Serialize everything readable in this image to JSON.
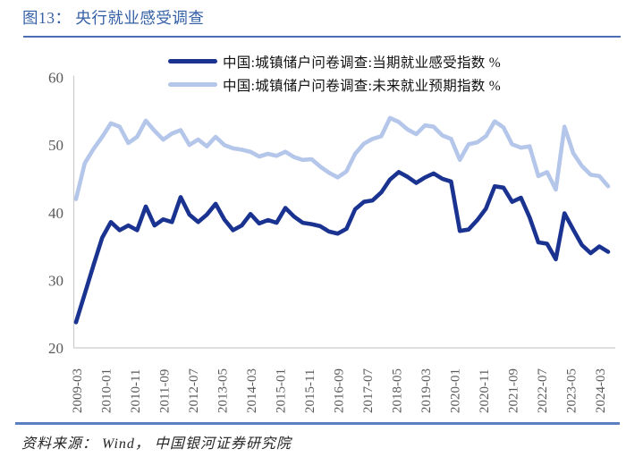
{
  "header": {
    "title": "图13： 央行就业感受调查"
  },
  "legend": {
    "items": [
      {
        "label": "中国:城镇储户问卷调查:当期就业感受指数 %",
        "color": "#1a3390"
      },
      {
        "label": "中国:城镇储户问卷调查:未来就业预期指数 %",
        "color": "#b4c6e9"
      }
    ]
  },
  "footer": {
    "source": "资料来源： Wind， 中国银河证券研究院"
  },
  "chart_data": {
    "type": "line",
    "title": "央行就业感受调查",
    "xlabel": "",
    "ylabel": "",
    "ylim": [
      20,
      60
    ],
    "y_ticks": [
      60,
      50,
      40,
      30,
      20
    ],
    "grid": false,
    "legend_position": "top-center",
    "x_tick_labels": [
      "2009-03",
      "2010-01",
      "2010-11",
      "2011-09",
      "2012-07",
      "2013-05",
      "2014-03",
      "2015-01",
      "2015-11",
      "2016-09",
      "2017-07",
      "2018-05",
      "2019-03",
      "2020-01",
      "2020-11",
      "2021-09",
      "2022-07",
      "2023-05",
      "2024-03"
    ],
    "x": [
      "2009-03",
      "2009-06",
      "2009-09",
      "2009-12",
      "2010-03",
      "2010-06",
      "2010-09",
      "2010-12",
      "2011-03",
      "2011-06",
      "2011-09",
      "2011-12",
      "2012-03",
      "2012-06",
      "2012-09",
      "2012-12",
      "2013-03",
      "2013-06",
      "2013-09",
      "2013-12",
      "2014-03",
      "2014-06",
      "2014-09",
      "2014-12",
      "2015-03",
      "2015-06",
      "2015-09",
      "2015-12",
      "2016-03",
      "2016-06",
      "2016-09",
      "2016-12",
      "2017-03",
      "2017-06",
      "2017-09",
      "2017-12",
      "2018-03",
      "2018-06",
      "2018-09",
      "2018-12",
      "2019-03",
      "2019-06",
      "2019-09",
      "2019-12",
      "2020-03",
      "2020-06",
      "2020-09",
      "2020-12",
      "2021-03",
      "2021-06",
      "2021-09",
      "2021-12",
      "2022-03",
      "2022-06",
      "2022-09",
      "2022-12",
      "2023-03",
      "2023-06",
      "2023-09",
      "2023-12",
      "2024-03",
      "2024-06"
    ],
    "series": [
      {
        "name": "中国:城镇储户问卷调查:当期就业感受指数 %",
        "color": "#1a3390",
        "values": [
          23.8,
          28.0,
          32.2,
          36.3,
          38.6,
          37.4,
          38.1,
          37.4,
          40.9,
          38.1,
          39.0,
          38.6,
          42.3,
          39.7,
          38.6,
          39.7,
          41.3,
          39.0,
          37.4,
          38.1,
          39.8,
          38.4,
          38.9,
          38.5,
          40.7,
          39.4,
          38.5,
          38.3,
          38.0,
          37.2,
          36.9,
          37.6,
          40.5,
          41.6,
          41.8,
          43.0,
          44.9,
          46.0,
          45.3,
          44.4,
          45.2,
          45.8,
          45.0,
          44.6,
          37.3,
          37.5,
          38.9,
          40.6,
          43.9,
          43.7,
          41.6,
          42.2,
          39.3,
          35.6,
          35.4,
          33.1,
          39.9,
          37.5,
          35.2,
          34.0,
          35.0,
          34.2
        ]
      },
      {
        "name": "中国:城镇储户问卷调查:未来就业预期指数 %",
        "color": "#b4c6e9",
        "values": [
          42.0,
          47.3,
          49.4,
          51.2,
          53.2,
          52.7,
          50.3,
          51.2,
          53.6,
          52.1,
          50.8,
          51.7,
          52.2,
          50.0,
          50.8,
          49.8,
          51.2,
          50.0,
          49.5,
          49.3,
          49.0,
          48.3,
          48.7,
          48.4,
          49.0,
          48.2,
          47.8,
          47.9,
          46.8,
          45.9,
          45.2,
          46.1,
          48.7,
          50.2,
          50.9,
          51.3,
          54.0,
          53.4,
          52.3,
          51.6,
          52.9,
          52.7,
          51.4,
          50.9,
          47.8,
          50.1,
          50.4,
          51.3,
          53.5,
          52.6,
          50.1,
          49.6,
          49.8,
          45.4,
          46.0,
          43.4,
          52.7,
          48.8,
          46.9,
          45.6,
          45.4,
          43.9
        ]
      }
    ]
  }
}
